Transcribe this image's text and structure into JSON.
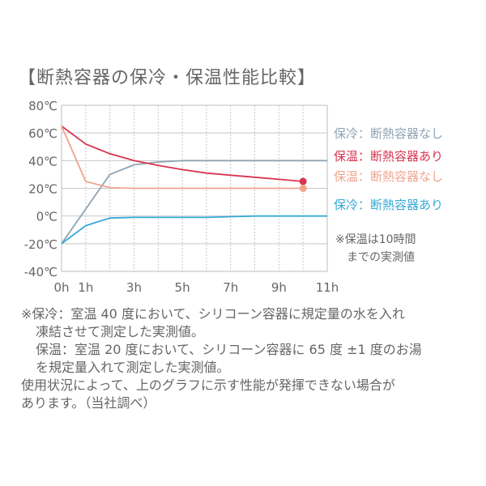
{
  "page_title": "【断熱容器の保冷・保温性能比較】",
  "chart_data": {
    "type": "line",
    "title": "【断熱容器の保冷・保温性能比較】",
    "x_ticks": [
      {
        "value": 0,
        "label": "0h"
      },
      {
        "value": 1,
        "label": "1h"
      },
      {
        "value": 3,
        "label": "3h"
      },
      {
        "value": 5,
        "label": "5h"
      },
      {
        "value": 7,
        "label": "7h"
      },
      {
        "value": 9,
        "label": "9h"
      },
      {
        "value": 11,
        "label": "11h"
      }
    ],
    "y_ticks": [
      {
        "value": 80,
        "label": "80℃"
      },
      {
        "value": 60,
        "label": "60℃"
      },
      {
        "value": 40,
        "label": "40℃"
      },
      {
        "value": 20,
        "label": "20℃"
      },
      {
        "value": 0,
        "label": "0℃"
      },
      {
        "value": -20,
        "label": "-20℃"
      },
      {
        "value": -40,
        "label": "-40℃"
      }
    ],
    "xlim": [
      0,
      11
    ],
    "ylim": [
      -40,
      80
    ],
    "grid": true,
    "legend_position": "right",
    "series": [
      {
        "name": "保冷：断熱容器なし",
        "color": "#8fa3b3",
        "x": [
          0,
          1,
          2,
          3,
          4,
          5,
          6,
          7,
          8,
          9,
          10,
          11
        ],
        "y": [
          -20,
          5,
          30,
          37,
          39,
          40,
          40,
          40,
          40,
          40,
          40,
          40
        ]
      },
      {
        "name": "保温：断熱容器あり",
        "color": "#d8344f",
        "marker_end": true,
        "x": [
          0,
          1,
          2,
          3,
          4,
          5,
          6,
          7,
          8,
          9,
          10
        ],
        "y": [
          65,
          52,
          45,
          40,
          36.5,
          33.5,
          31,
          29.5,
          28,
          26.5,
          25
        ]
      },
      {
        "name": "保温：断熱容器なし",
        "color": "#f0a48e",
        "marker_end": true,
        "x": [
          0,
          1,
          2,
          3,
          4,
          5,
          6,
          7,
          8,
          9,
          10
        ],
        "y": [
          65,
          25,
          20.5,
          20,
          20,
          20,
          20,
          20,
          20,
          20,
          20
        ]
      },
      {
        "name": "保冷：断熱容器あり",
        "color": "#35a9d6",
        "x": [
          0,
          1,
          2,
          3,
          4,
          5,
          6,
          7,
          8,
          9,
          10,
          11
        ],
        "y": [
          -20,
          -7,
          -1.5,
          -1,
          -1,
          -1,
          -1,
          -0.5,
          0,
          0,
          0,
          0
        ]
      }
    ],
    "annotation": [
      "※保温は10時間",
      "までの実測値"
    ]
  },
  "notes": [
    "※保冷：室温 40 度において、シリコーン容器に規定量の水を入れ",
    "凍結させて測定した実測値。",
    "保温：室温 20 度において、シリコーン容器に 65 度 ±1 度のお湯",
    "を規定量入れて測定した実測値。",
    "使用状況によって、上のグラフに示す性能が発揮できない場合が",
    "あります。（当社調べ）"
  ]
}
